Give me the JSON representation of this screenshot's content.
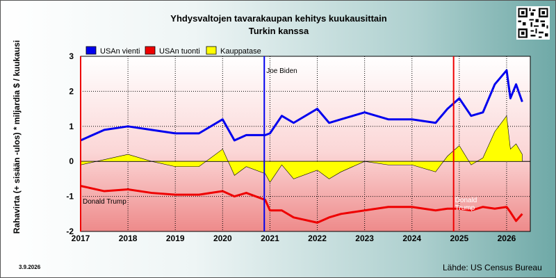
{
  "title_line1": "Yhdysvaltojen tavarakaupan kehitys kuukausittain",
  "title_line2": "Turkin kanssa",
  "footer": {
    "date": "3.9.2026",
    "source": "Lähde: US Census Bureau"
  },
  "chart_data": {
    "type": "line",
    "ylabel": "Rahavirta (+ sisään -ulos) * miljardia $ / kuukausi",
    "ylim": [
      -2,
      3
    ],
    "yticks": [
      "3",
      "2",
      "1",
      "0",
      "-1",
      "-2"
    ],
    "xticks": [
      "2017",
      "2018",
      "2019",
      "2020",
      "2021",
      "2022",
      "2023",
      "2024",
      "2025",
      "2026"
    ],
    "xlim": [
      2017,
      2026.5
    ],
    "grid": true,
    "legend_position": "top-left",
    "legend": [
      {
        "label": "USAn vienti",
        "color": "#0000ee"
      },
      {
        "label": "USAn tuonti",
        "color": "#ee0000"
      },
      {
        "label": "Kauppatase",
        "color": "#ffff00"
      }
    ],
    "annotations": [
      {
        "label": "Donald Trump",
        "x": 2017.0,
        "color": "#ee0000"
      },
      {
        "label": "Joe Biden",
        "x": 2020.88,
        "color": "#0000ee"
      },
      {
        "label": "Donald Trump",
        "x": 2024.88,
        "color": "#ee0000"
      }
    ],
    "x": [
      2017.0,
      2017.5,
      2018.0,
      2018.5,
      2019.0,
      2019.5,
      2020.0,
      2020.25,
      2020.5,
      2020.9,
      2021.0,
      2021.25,
      2021.5,
      2022.0,
      2022.25,
      2022.5,
      2023.0,
      2023.5,
      2024.0,
      2024.5,
      2024.75,
      2025.0,
      2025.25,
      2025.5,
      2025.75,
      2026.0,
      2026.08,
      2026.2,
      2026.33
    ],
    "series": [
      {
        "name": "USAn vienti",
        "color": "#0000ee",
        "values": [
          0.6,
          0.9,
          1.0,
          0.9,
          0.8,
          0.8,
          1.2,
          0.6,
          0.75,
          0.75,
          0.8,
          1.3,
          1.1,
          1.5,
          1.1,
          1.2,
          1.4,
          1.2,
          1.2,
          1.1,
          1.5,
          1.8,
          1.3,
          1.4,
          2.2,
          2.6,
          1.8,
          2.2,
          1.7
        ]
      },
      {
        "name": "USAn tuonti",
        "color": "#ee0000",
        "values": [
          -0.7,
          -0.85,
          -0.8,
          -0.9,
          -0.95,
          -0.95,
          -0.85,
          -1.0,
          -0.9,
          -1.1,
          -1.4,
          -1.4,
          -1.6,
          -1.75,
          -1.6,
          -1.5,
          -1.4,
          -1.3,
          -1.3,
          -1.4,
          -1.35,
          -1.35,
          -1.4,
          -1.3,
          -1.35,
          -1.3,
          -1.45,
          -1.7,
          -1.5
        ]
      },
      {
        "name": "Kauppatase",
        "color": "#ffff00",
        "values": [
          -0.1,
          0.05,
          0.2,
          0.0,
          -0.15,
          -0.15,
          0.35,
          -0.4,
          -0.15,
          -0.35,
          -0.6,
          -0.1,
          -0.5,
          -0.25,
          -0.5,
          -0.3,
          0.0,
          -0.1,
          -0.1,
          -0.3,
          0.15,
          0.45,
          -0.1,
          0.1,
          0.85,
          1.3,
          0.35,
          0.5,
          0.2
        ]
      }
    ]
  }
}
